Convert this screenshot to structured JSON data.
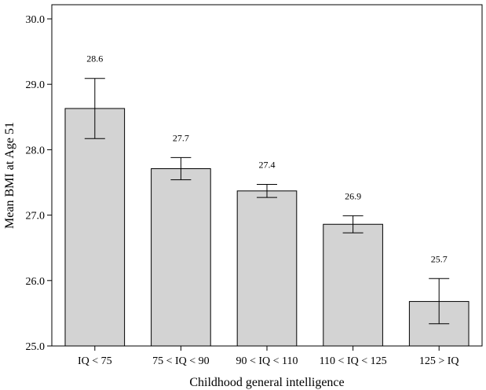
{
  "chart_data": {
    "type": "bar",
    "xlabel": "Childhood general intelligence",
    "ylabel": "Mean BMI at Age 51",
    "ylim": [
      25.0,
      30.0
    ],
    "yticks": [
      "25.0",
      "26.0",
      "27.0",
      "28.0",
      "29.0",
      "30.0"
    ],
    "categories": [
      "IQ < 75",
      "75 < IQ < 90",
      "90 < IQ < 110",
      "110 < IQ < 125",
      "125 > IQ"
    ],
    "values": [
      28.63,
      27.71,
      27.37,
      26.86,
      25.68
    ],
    "data_labels": [
      "28.6",
      "27.7",
      "27.4",
      "26.9",
      "25.7"
    ],
    "error_bars": [
      {
        "low": 28.17,
        "high": 29.09
      },
      {
        "low": 27.54,
        "high": 27.88
      },
      {
        "low": 27.27,
        "high": 27.47
      },
      {
        "low": 26.73,
        "high": 26.99
      },
      {
        "low": 25.34,
        "high": 26.03
      }
    ],
    "bar_color": "#d3d3d3",
    "grid": false,
    "legend": "none"
  }
}
